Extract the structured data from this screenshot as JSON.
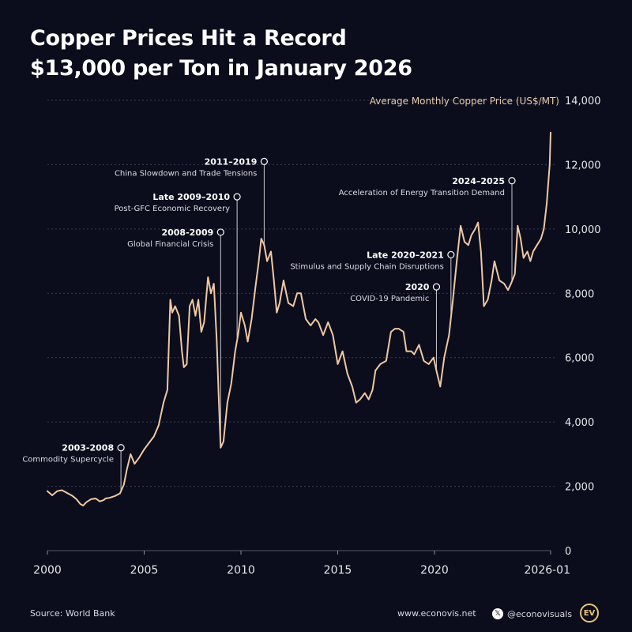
{
  "page": {
    "title_line1": "Copper Prices Hit a Record",
    "title_line2": "$13,000 per Ton in January 2026"
  },
  "colors": {
    "background": "#0b0d1c",
    "line": "#f0c8a2",
    "grid": "#3b3d52",
    "axis_text": "#e6e6ea",
    "series_label": "#e8c9a8",
    "logo": "#e8c27a"
  },
  "footer": {
    "source": "Source: World Bank",
    "website": "www.econovis.net",
    "handle": "@econovisuals",
    "x_icon": "x-logo-icon",
    "logo_text": "EV"
  },
  "chart_data": {
    "type": "line",
    "title": "Copper Prices Hit a Record $13,000 per Ton in January 2026",
    "series_label": "Average Monthly Copper Price (US$/MT)",
    "ylim": [
      0,
      14000
    ],
    "xlim": [
      2000,
      2026.0
    ],
    "y_ticks": [
      "0",
      "2,000",
      "4,000",
      "6,000",
      "8,000",
      "10,000",
      "12,000",
      "14,000"
    ],
    "x_ticks": [
      "2000",
      "2005",
      "2010",
      "2015",
      "2020",
      "2026-01"
    ],
    "grid": true,
    "series": [
      {
        "name": "Average Monthly Copper Price (US$/MT)",
        "points": [
          [
            2000.0,
            1850
          ],
          [
            2000.25,
            1720
          ],
          [
            2000.5,
            1850
          ],
          [
            2000.75,
            1880
          ],
          [
            2001.0,
            1800
          ],
          [
            2001.15,
            1750
          ],
          [
            2001.3,
            1700
          ],
          [
            2001.5,
            1600
          ],
          [
            2001.7,
            1450
          ],
          [
            2001.85,
            1400
          ],
          [
            2002.0,
            1500
          ],
          [
            2002.25,
            1600
          ],
          [
            2002.5,
            1620
          ],
          [
            2002.7,
            1530
          ],
          [
            2002.9,
            1570
          ],
          [
            2003.0,
            1620
          ],
          [
            2003.2,
            1640
          ],
          [
            2003.5,
            1700
          ],
          [
            2003.75,
            1780
          ],
          [
            2003.95,
            2050
          ],
          [
            2004.1,
            2500
          ],
          [
            2004.3,
            3000
          ],
          [
            2004.5,
            2700
          ],
          [
            2004.75,
            2900
          ],
          [
            2005.0,
            3150
          ],
          [
            2005.25,
            3350
          ],
          [
            2005.5,
            3550
          ],
          [
            2005.75,
            3900
          ],
          [
            2006.0,
            4600
          ],
          [
            2006.2,
            5000
          ],
          [
            2006.35,
            7800
          ],
          [
            2006.45,
            7400
          ],
          [
            2006.6,
            7600
          ],
          [
            2006.8,
            7300
          ],
          [
            2006.95,
            6200
          ],
          [
            2007.05,
            5700
          ],
          [
            2007.2,
            5800
          ],
          [
            2007.35,
            7600
          ],
          [
            2007.5,
            7800
          ],
          [
            2007.65,
            7300
          ],
          [
            2007.8,
            7800
          ],
          [
            2007.95,
            6800
          ],
          [
            2008.1,
            7100
          ],
          [
            2008.3,
            8500
          ],
          [
            2008.45,
            8000
          ],
          [
            2008.6,
            8300
          ],
          [
            2008.75,
            6500
          ],
          [
            2008.85,
            4800
          ],
          [
            2008.95,
            3200
          ],
          [
            2009.1,
            3400
          ],
          [
            2009.3,
            4600
          ],
          [
            2009.5,
            5200
          ],
          [
            2009.7,
            6200
          ],
          [
            2009.85,
            6700
          ],
          [
            2010.0,
            7400
          ],
          [
            2010.2,
            7000
          ],
          [
            2010.35,
            6500
          ],
          [
            2010.55,
            7200
          ],
          [
            2010.75,
            8200
          ],
          [
            2010.9,
            8900
          ],
          [
            2011.05,
            9700
          ],
          [
            2011.2,
            9500
          ],
          [
            2011.35,
            9000
          ],
          [
            2011.55,
            9300
          ],
          [
            2011.7,
            8400
          ],
          [
            2011.85,
            7400
          ],
          [
            2012.0,
            7700
          ],
          [
            2012.2,
            8400
          ],
          [
            2012.45,
            7700
          ],
          [
            2012.7,
            7600
          ],
          [
            2012.9,
            8000
          ],
          [
            2013.1,
            8000
          ],
          [
            2013.35,
            7200
          ],
          [
            2013.6,
            7000
          ],
          [
            2013.85,
            7200
          ],
          [
            2014.0,
            7100
          ],
          [
            2014.25,
            6700
          ],
          [
            2014.5,
            7100
          ],
          [
            2014.75,
            6700
          ],
          [
            2015.0,
            5800
          ],
          [
            2015.25,
            6200
          ],
          [
            2015.5,
            5500
          ],
          [
            2015.75,
            5100
          ],
          [
            2015.95,
            4600
          ],
          [
            2016.15,
            4700
          ],
          [
            2016.4,
            4900
          ],
          [
            2016.6,
            4700
          ],
          [
            2016.8,
            5000
          ],
          [
            2016.95,
            5600
          ],
          [
            2017.2,
            5800
          ],
          [
            2017.5,
            5900
          ],
          [
            2017.75,
            6800
          ],
          [
            2017.95,
            6900
          ],
          [
            2018.15,
            6900
          ],
          [
            2018.4,
            6800
          ],
          [
            2018.55,
            6200
          ],
          [
            2018.8,
            6200
          ],
          [
            2018.95,
            6100
          ],
          [
            2019.2,
            6400
          ],
          [
            2019.45,
            5900
          ],
          [
            2019.7,
            5800
          ],
          [
            2019.95,
            6000
          ],
          [
            2020.1,
            5600
          ],
          [
            2020.3,
            5100
          ],
          [
            2020.5,
            6000
          ],
          [
            2020.75,
            6700
          ],
          [
            2020.95,
            7800
          ],
          [
            2021.15,
            9000
          ],
          [
            2021.35,
            10100
          ],
          [
            2021.55,
            9600
          ],
          [
            2021.75,
            9500
          ],
          [
            2021.9,
            9800
          ],
          [
            2022.1,
            10000
          ],
          [
            2022.25,
            10200
          ],
          [
            2022.4,
            9300
          ],
          [
            2022.55,
            7600
          ],
          [
            2022.75,
            7800
          ],
          [
            2022.95,
            8400
          ],
          [
            2023.1,
            9000
          ],
          [
            2023.35,
            8400
          ],
          [
            2023.6,
            8300
          ],
          [
            2023.8,
            8100
          ],
          [
            2023.95,
            8300
          ],
          [
            2024.15,
            8600
          ],
          [
            2024.3,
            10100
          ],
          [
            2024.45,
            9700
          ],
          [
            2024.6,
            9100
          ],
          [
            2024.8,
            9300
          ],
          [
            2024.95,
            9000
          ],
          [
            2025.1,
            9300
          ],
          [
            2025.3,
            9500
          ],
          [
            2025.5,
            9700
          ],
          [
            2025.65,
            10000
          ],
          [
            2025.8,
            10800
          ],
          [
            2025.95,
            12000
          ],
          [
            2026.0,
            13000
          ]
        ]
      }
    ],
    "annotations": [
      {
        "title": "2003-2008",
        "subtitle": "Commodity Supercycle",
        "x": 2003.8,
        "y": 3200
      },
      {
        "title": "2008-2009",
        "subtitle": "Global Financial Crisis",
        "x": 2008.95,
        "y": 9900
      },
      {
        "title": "Late 2009–2010",
        "subtitle": "Post-GFC Economic Recovery",
        "x": 2009.8,
        "y": 11000
      },
      {
        "title": "2011–2019",
        "subtitle": "China Slowdown and Trade Tensions",
        "x": 2011.2,
        "y": 12100
      },
      {
        "title": "2020",
        "subtitle": "COVID-19 Pandemic",
        "x": 2020.1,
        "y": 8200
      },
      {
        "title": "Late 2020–2021",
        "subtitle": "Stimulus and Supply Chain Disruptions",
        "x": 2020.85,
        "y": 9200
      },
      {
        "title": "2024–2025",
        "subtitle": "Acceleration of Energy Transition Demand",
        "x": 2024.0,
        "y": 11500
      }
    ]
  }
}
